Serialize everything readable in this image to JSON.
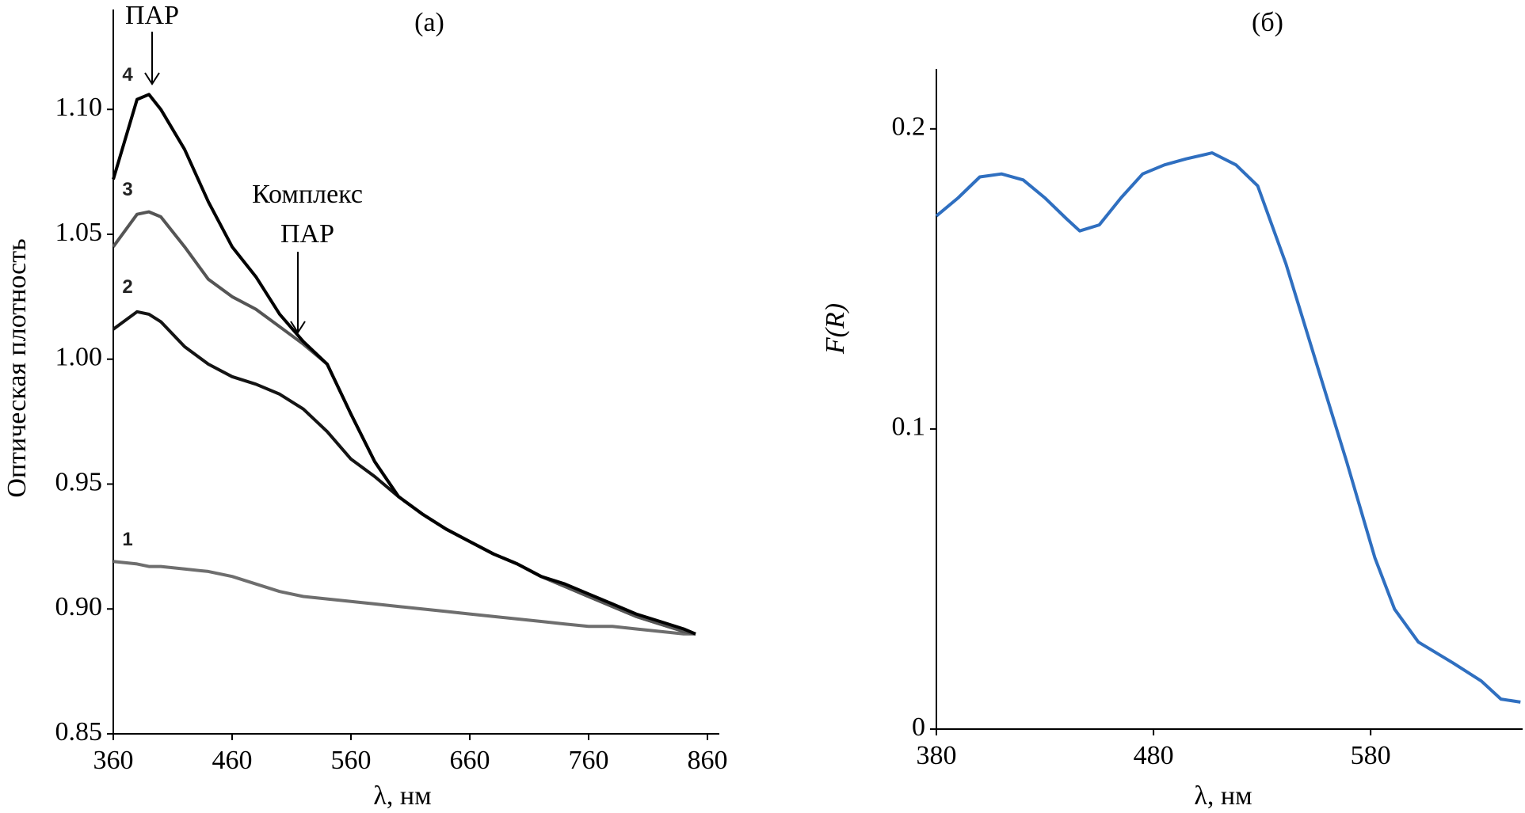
{
  "chart_data": [
    {
      "type": "line",
      "title": "(а)",
      "xlabel": "λ, нм",
      "ylabel": "Оптическая плотность",
      "x": [
        360,
        380,
        390,
        400,
        420,
        440,
        460,
        480,
        500,
        520,
        540,
        560,
        580,
        600,
        620,
        640,
        660,
        680,
        700,
        720,
        740,
        760,
        780,
        800,
        820,
        840,
        850
      ],
      "series": [
        {
          "name": "1",
          "color": "#6e6e6e",
          "values": [
            0.919,
            0.918,
            0.917,
            0.917,
            0.916,
            0.915,
            0.913,
            0.91,
            0.907,
            0.905,
            0.904,
            0.903,
            0.902,
            0.901,
            0.9,
            0.899,
            0.898,
            0.897,
            0.896,
            0.895,
            0.894,
            0.893,
            0.893,
            0.892,
            0.891,
            0.89,
            0.89
          ]
        },
        {
          "name": "2",
          "color": "#141414",
          "values": [
            1.012,
            1.019,
            1.018,
            1.015,
            1.005,
            0.998,
            0.993,
            0.99,
            0.986,
            0.98,
            0.971,
            0.96,
            0.953,
            0.945,
            0.938,
            0.932,
            0.927,
            0.922,
            0.918,
            0.913,
            0.909,
            0.905,
            0.901,
            0.897,
            0.894,
            0.891,
            0.89
          ]
        },
        {
          "name": "3",
          "color": "#555555",
          "values": [
            1.045,
            1.058,
            1.059,
            1.057,
            1.045,
            1.032,
            1.025,
            1.02,
            1.013,
            1.006,
            0.998,
            0.978,
            0.959,
            0.945,
            0.938,
            0.932,
            0.927,
            0.922,
            0.918,
            0.913,
            0.909,
            0.905,
            0.901,
            0.897,
            0.894,
            0.891,
            0.89
          ]
        },
        {
          "name": "4",
          "color": "#000000",
          "values": [
            1.072,
            1.104,
            1.106,
            1.1,
            1.084,
            1.063,
            1.045,
            1.033,
            1.018,
            1.007,
            0.998,
            0.978,
            0.959,
            0.945,
            0.938,
            0.932,
            0.927,
            0.922,
            0.918,
            0.913,
            0.91,
            0.906,
            0.902,
            0.898,
            0.895,
            0.892,
            0.89
          ]
        }
      ],
      "annotations": [
        {
          "lines": [
            "ПАР"
          ]
        },
        {
          "lines": [
            "Комплекс",
            "ПАР"
          ]
        }
      ],
      "xlim": [
        360,
        870
      ],
      "xticks": [
        360,
        460,
        560,
        660,
        760,
        860
      ],
      "ylim": [
        0.85,
        1.14
      ],
      "yticks": [
        0.85,
        {
          "value": 0.9,
          "label": "0.90"
        },
        0.95,
        {
          "value": 1,
          "label": "1.00"
        },
        1.05,
        {
          "value": 1.1,
          "label": "1.10"
        }
      ]
    },
    {
      "type": "line",
      "title": "(б)",
      "xlabel": "λ, нм",
      "ylabel": "F(R)",
      "x": [
        380,
        390,
        400,
        410,
        420,
        430,
        440,
        446,
        455,
        465,
        475,
        485,
        495,
        507,
        518,
        528,
        541,
        555,
        569,
        582,
        591,
        602,
        618,
        631,
        640,
        649
      ],
      "series": [
        {
          "name": null,
          "color": "#2f6fc0",
          "values": [
            0.171,
            0.177,
            0.184,
            0.185,
            0.183,
            0.177,
            0.17,
            0.166,
            0.168,
            0.177,
            0.185,
            0.188,
            0.19,
            0.192,
            0.188,
            0.181,
            0.155,
            0.122,
            0.089,
            0.057,
            0.04,
            0.029,
            0.022,
            0.016,
            0.01,
            0.009
          ]
        }
      ],
      "xlim": [
        380,
        650
      ],
      "xticks": [
        380,
        480,
        580
      ],
      "ylim": [
        0,
        0.22
      ],
      "yticks": [
        0,
        0.1,
        0.2
      ]
    }
  ]
}
